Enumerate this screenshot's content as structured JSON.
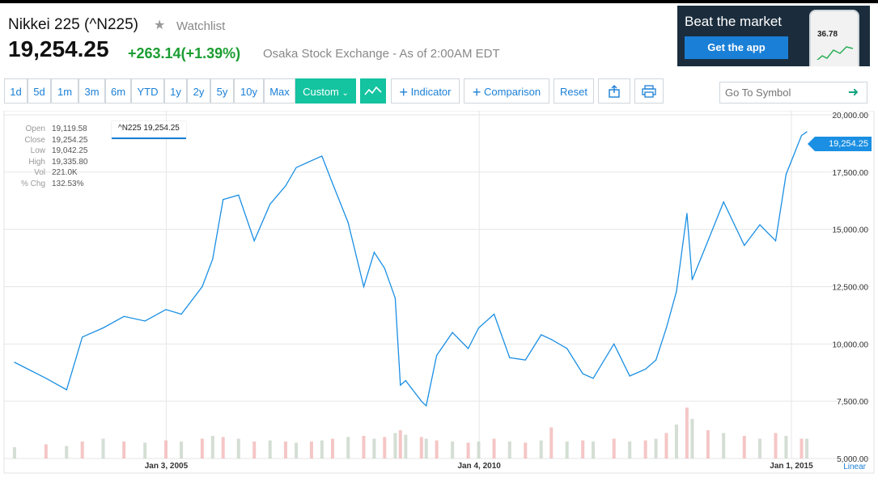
{
  "header": {
    "title": "Nikkei 225 (^N225)",
    "watchlist_label": "Watchlist",
    "price": "19,254.25",
    "change": "+263.14",
    "change_pct": "(+1.39%)",
    "exchange_info": "Osaka Stock Exchange - As of 2:00AM EDT"
  },
  "ad": {
    "title": "Beat the market",
    "button": "Get the app",
    "phone_value": "36.78"
  },
  "toolbar": {
    "ranges": [
      "1d",
      "5d",
      "1m",
      "3m",
      "6m",
      "YTD",
      "1y",
      "2y",
      "5y",
      "10y",
      "Max"
    ],
    "custom_label": "Custom",
    "indicator_label": "Indicator",
    "comparison_label": "Comparison",
    "reset_label": "Reset",
    "symbol_placeholder": "Go To Symbol"
  },
  "quote": {
    "labels": [
      "Open",
      "Close",
      "Low",
      "High",
      "Vol",
      "% Chg"
    ],
    "values": [
      "19,119.58",
      "19,254.25",
      "19,042.25",
      "19,335.80",
      "221.0K",
      "132.53%"
    ],
    "badge": "^N225 19,254.25",
    "last_price_tag": "19,254.25"
  },
  "colors": {
    "accent": "#1a7fd6",
    "active": "#14c3a0",
    "up": "#1a9d31",
    "line": "#1a8fe3"
  },
  "chart_data": {
    "type": "line",
    "series": [
      {
        "name": "^N225",
        "x": [
          "2002-08-01",
          "2003-02-01",
          "2003-06-01",
          "2003-09-01",
          "2004-01-01",
          "2004-05-01",
          "2004-09-01",
          "2005-01-01",
          "2005-04-01",
          "2005-08-01",
          "2005-10-01",
          "2005-12-01",
          "2006-03-01",
          "2006-06-01",
          "2006-09-01",
          "2006-12-01",
          "2007-02-01",
          "2007-05-01",
          "2007-07-01",
          "2007-09-01",
          "2007-12-01",
          "2008-03-01",
          "2008-05-01",
          "2008-07-01",
          "2008-09-01",
          "2008-10-01",
          "2008-11-01",
          "2009-02-01",
          "2009-03-01",
          "2009-05-01",
          "2009-08-01",
          "2009-11-01",
          "2010-01-01",
          "2010-04-01",
          "2010-07-01",
          "2010-10-01",
          "2011-01-01",
          "2011-03-01",
          "2011-06-01",
          "2011-09-01",
          "2011-11-01",
          "2012-03-01",
          "2012-06-01",
          "2012-09-01",
          "2012-11-01",
          "2013-01-01",
          "2013-03-01",
          "2013-05-01",
          "2013-06-01",
          "2013-09-01",
          "2013-12-01",
          "2014-04-01",
          "2014-07-01",
          "2014-10-01",
          "2014-12-01",
          "2015-03-01",
          "2015-04-01"
        ],
        "y": [
          9200,
          8500,
          8000,
          10300,
          10700,
          11200,
          11000,
          11500,
          11300,
          12500,
          13700,
          16300,
          16500,
          14500,
          16100,
          16900,
          17700,
          18000,
          18200,
          17000,
          15300,
          12500,
          14000,
          13300,
          12000,
          8200,
          8400,
          7500,
          7300,
          9500,
          10500,
          9800,
          10700,
          11300,
          9400,
          9300,
          10400,
          10200,
          9800,
          8700,
          8500,
          10000,
          8600,
          8900,
          9300,
          10700,
          12300,
          15700,
          12800,
          14500,
          16200,
          14300,
          15200,
          14500,
          17400,
          19100,
          19254.25
        ]
      }
    ],
    "volume": [
      2,
      2.5,
      2.2,
      3,
      3.5,
      3,
      2.8,
      3.2,
      3,
      3.5,
      4,
      3.8,
      3.5,
      3,
      3.2,
      3,
      2.8,
      3,
      3.2,
      3.5,
      3.8,
      4,
      3.5,
      3.8,
      4.5,
      5,
      4.2,
      3.8,
      3.5,
      3.2,
      3,
      2.8,
      3,
      3.5,
      3,
      2.8,
      3.2,
      5.5,
      3,
      3.2,
      3,
      3.5,
      3,
      3.2,
      3.5,
      4.5,
      6,
      9,
      7,
      5,
      4.5,
      4,
      3.5,
      4.5,
      4,
      3.5,
      3.5
    ],
    "xticks": [
      {
        "value": "2005-01-03",
        "label": "Jan 3, 2005"
      },
      {
        "value": "2010-01-04",
        "label": "Jan 4, 2010"
      },
      {
        "value": "2015-01-01",
        "label": "Jan 1, 2015"
      }
    ],
    "yticks": [
      "20,000.00",
      "17,500.00",
      "15,000.00",
      "12,500.00",
      "10,000.00",
      "7,500.00",
      "5,000.00"
    ],
    "ytick_values": [
      20000,
      17500,
      15000,
      12500,
      10000,
      7500,
      5000
    ],
    "ylim": [
      5000,
      20000
    ],
    "scale_label": "Linear",
    "grid": true
  }
}
